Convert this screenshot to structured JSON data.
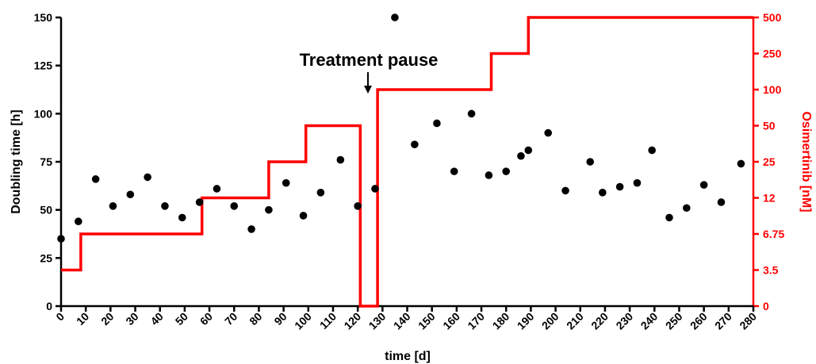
{
  "chart_data": {
    "type": "scatter",
    "xlabel": "time [d]",
    "ylabel": "Doubling time [h]",
    "y2label": "Osimertinib [nM]",
    "xlim": [
      0,
      280
    ],
    "ylim": [
      0,
      150
    ],
    "x_ticks": [
      0,
      10,
      20,
      30,
      40,
      50,
      60,
      70,
      80,
      90,
      100,
      110,
      120,
      130,
      140,
      150,
      160,
      170,
      180,
      190,
      200,
      210,
      220,
      230,
      240,
      250,
      260,
      270,
      280
    ],
    "y_ticks": [
      0,
      25,
      50,
      75,
      100,
      125,
      150
    ],
    "y2_ticks": [
      "0",
      "3.5",
      "6.75",
      "12",
      "25",
      "50",
      "100",
      "250",
      "500"
    ],
    "grid": false,
    "colors": {
      "points": "#000000",
      "dose": "#ff0000",
      "axis_right": "#ff0000"
    },
    "annotation": {
      "text": "Treatment pause",
      "x": 124,
      "y": 122
    },
    "series": [
      {
        "type": "scatter",
        "x": [
          0,
          7,
          14,
          21,
          28,
          35,
          42,
          49,
          56,
          63,
          70,
          77,
          84,
          91,
          98,
          105,
          113,
          120,
          127,
          135,
          143,
          152,
          159,
          166,
          173,
          180,
          186,
          189,
          197,
          204,
          214,
          219,
          226,
          233,
          239,
          246,
          253,
          260,
          267,
          275
        ],
        "y": [
          35,
          44,
          66,
          52,
          58,
          67,
          52,
          46,
          54,
          61,
          52,
          40,
          50,
          64,
          47,
          59,
          76,
          52,
          61,
          150,
          84,
          95,
          70,
          100,
          68,
          70,
          78,
          81,
          90,
          60,
          75,
          59,
          62,
          64,
          81,
          46,
          51,
          63,
          54,
          74
        ]
      },
      {
        "type": "step",
        "x": [
          0,
          8,
          8,
          57,
          57,
          84,
          84,
          99,
          99,
          121,
          121,
          128,
          128,
          174,
          174,
          189,
          189,
          280
        ],
        "y2": [
          "3.5",
          "3.5",
          "6.75",
          "6.75",
          "12",
          "12",
          "25",
          "25",
          "50",
          "50",
          "0",
          "0",
          "100",
          "100",
          "250",
          "250",
          "500",
          "500"
        ]
      }
    ]
  }
}
